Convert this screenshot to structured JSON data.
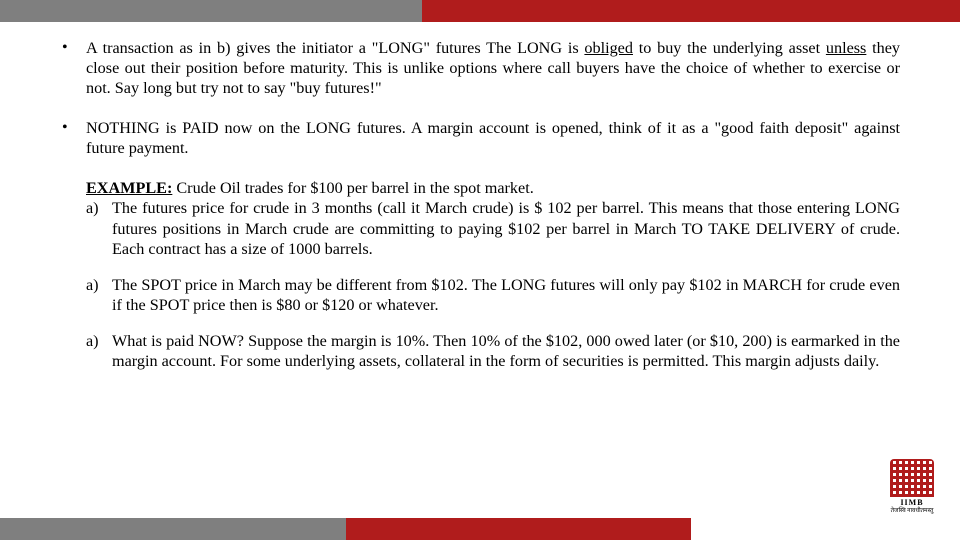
{
  "layout": {
    "top_bar": {
      "grey_width_pct": 44,
      "red_width_pct": 56
    },
    "bottom_bar": {
      "grey_width_pct": 36,
      "red_width_pct": 36,
      "white_width_pct": 28
    },
    "colors": {
      "grey": "#7f7f7f",
      "red": "#b01c1c",
      "text": "#000000",
      "bg": "#ffffff"
    },
    "font_family": "Times New Roman",
    "font_size_pt": 12
  },
  "bullets": [
    {
      "prefix": "A transaction as in b) gives the initiator a \"LONG\" futures The LONG is ",
      "u1": "obliged",
      "mid": " to buy the underlying asset ",
      "u2": "unless",
      "suffix": " they close out their position before maturity. This is unlike options where call buyers have the choice of whether to exercise or not. Say long but try not to say \"buy futures!\""
    },
    {
      "text": "NOTHING is PAID now on the LONG futures. A margin account is opened, think of it as a \"good faith deposit\" against future payment."
    }
  ],
  "example": {
    "heading": "EXAMPLE:",
    "intro": " Crude Oil trades for $100 per barrel in the spot market.",
    "items": [
      {
        "marker": "a)",
        "text": "The futures price for crude in 3 months (call it March crude) is $ 102 per barrel. This means that those entering LONG futures positions in March crude are committing to paying $102 per barrel in March TO TAKE DELIVERY of crude. Each contract has a size of 1000 barrels."
      },
      {
        "marker": "a)",
        "text": "The SPOT price in March may be different from $102. The LONG futures will only pay $102 in MARCH for crude even if the SPOT price then is $80 or $120 or whatever."
      },
      {
        "marker": "a)",
        "text": "What is paid NOW? Suppose the margin is 10%.  Then 10% of the $102, 000 owed later (or $10, 200) is earmarked in the margin account. For some underlying assets, collateral in the form of securities is permitted.  This margin adjusts daily."
      }
    ]
  },
  "logo": {
    "label": "IIMB",
    "sub": "तेजस्वि नावधीतमस्तु"
  }
}
